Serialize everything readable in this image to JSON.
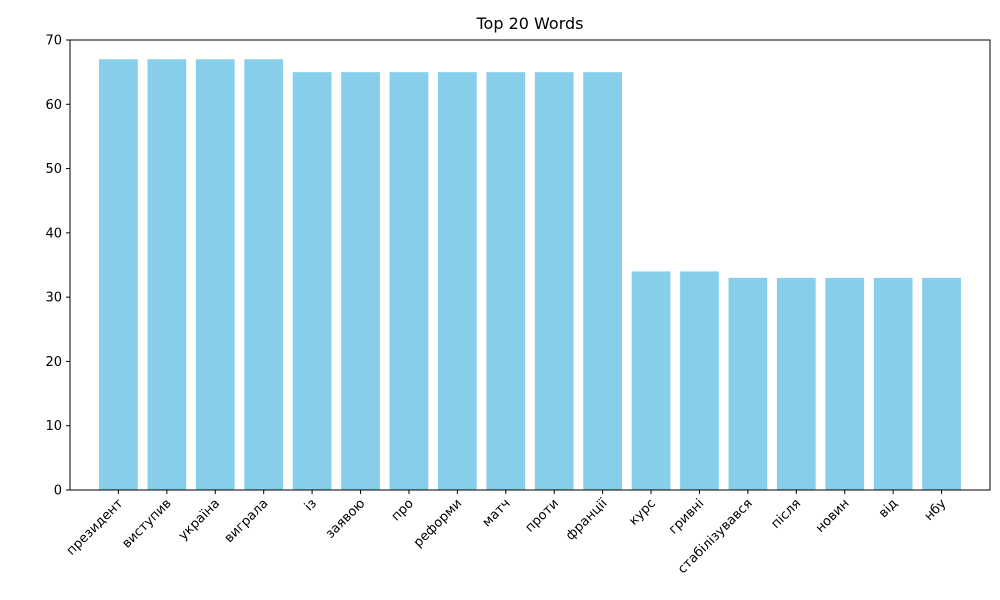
{
  "chart_data": {
    "type": "bar",
    "title": "Top 20 Words",
    "xlabel": "",
    "ylabel": "",
    "categories": [
      "президент",
      "виступив",
      "україна",
      "виграла",
      "із",
      "заявою",
      "про",
      "реформи",
      "матч",
      "проти",
      "франції",
      "курс",
      "гривні",
      "стабілізувався",
      "після",
      "новин",
      "від",
      "нбу"
    ],
    "values": [
      67,
      67,
      67,
      67,
      65,
      65,
      65,
      65,
      65,
      65,
      65,
      34,
      34,
      33,
      33,
      33,
      33,
      33
    ],
    "ylim": [
      0,
      70
    ],
    "yticks": [
      0,
      10,
      20,
      30,
      40,
      50,
      60,
      70
    ],
    "bar_color": "#87ceeb",
    "grid": false,
    "legend": false
  }
}
